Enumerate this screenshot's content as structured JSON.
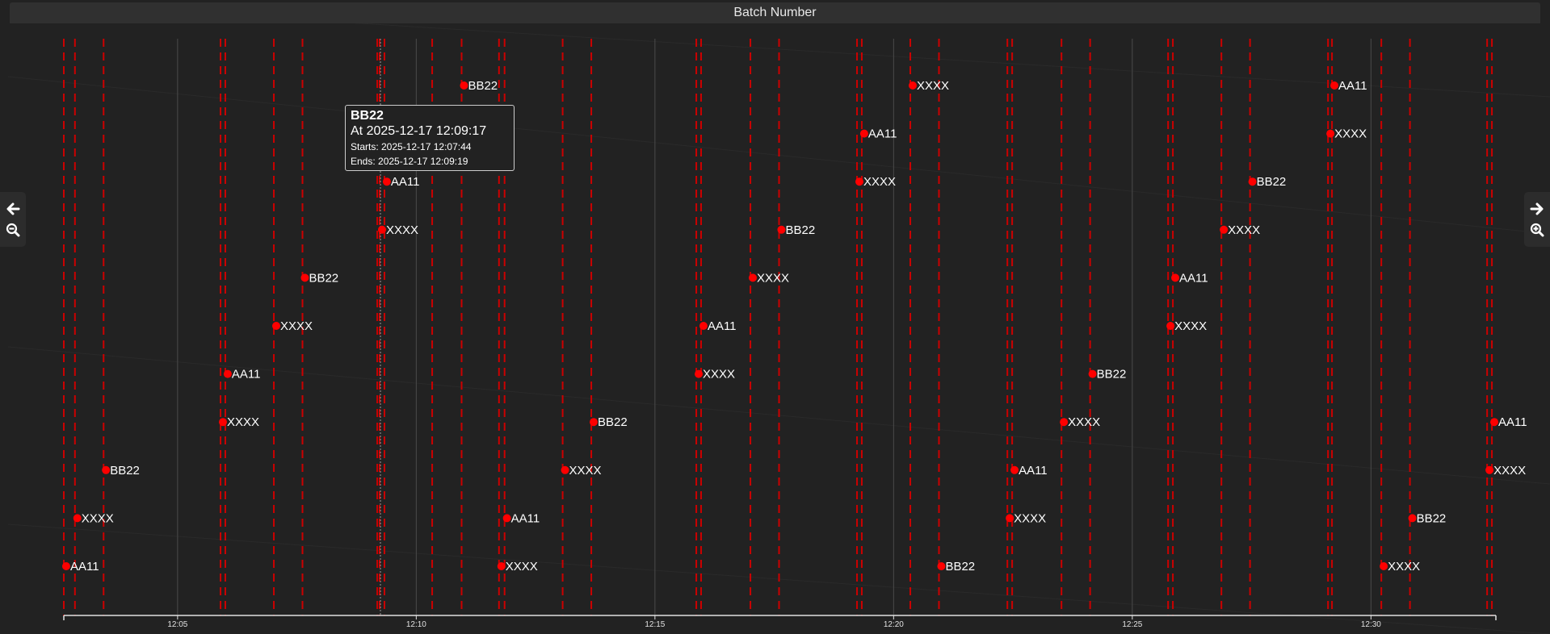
{
  "title": "Batch Number",
  "nav": {
    "prev_icon": "arrow-left-icon",
    "zoom_out_icon": "zoom-out-icon",
    "next_icon": "arrow-right-icon",
    "zoom_in_icon": "zoom-in-icon"
  },
  "tooltip": {
    "title": "BB22",
    "at": "At 2025-12-17 12:09:17",
    "starts": "Starts: 2025-12-17 12:07:44",
    "ends": "Ends: 2025-12-17 12:09:19"
  },
  "chart_data": {
    "type": "scatter",
    "title": "Batch Number",
    "xlabel": "",
    "ylabel": "",
    "x_range": [
      "12:02:37",
      "12:32:37"
    ],
    "x_ticks": [
      "12:05",
      "12:10",
      "12:15",
      "12:20",
      "12:25",
      "12:30"
    ],
    "grid": true,
    "point_color": "#ff0000",
    "line_color": "#cc0000",
    "background_color": "#222222",
    "points": [
      {
        "label": "AA11",
        "time": "12:02:40",
        "row": 1
      },
      {
        "label": "XXXX",
        "time": "12:02:54",
        "row": 2
      },
      {
        "label": "BB22",
        "time": "12:03:30",
        "row": 3
      },
      {
        "label": "XXXX",
        "time": "12:05:57",
        "row": 4
      },
      {
        "label": "AA11",
        "time": "12:06:03",
        "row": 5
      },
      {
        "label": "XXXX",
        "time": "12:07:04",
        "row": 6
      },
      {
        "label": "BB22",
        "time": "12:07:40",
        "row": 7
      },
      {
        "label": "XXXX",
        "time": "12:09:17",
        "row": 8
      },
      {
        "label": "AA11",
        "time": "12:09:23",
        "row": 9
      },
      {
        "label": "BB22",
        "time": "12:11:00",
        "row": 11
      },
      {
        "label": "XXXX",
        "time": "12:11:47",
        "row": 1
      },
      {
        "label": "AA11",
        "time": "12:11:54",
        "row": 2
      },
      {
        "label": "XXXX",
        "time": "12:13:07",
        "row": 3
      },
      {
        "label": "BB22",
        "time": "12:13:43",
        "row": 4
      },
      {
        "label": "XXXX",
        "time": "12:15:55",
        "row": 5
      },
      {
        "label": "AA11",
        "time": "12:16:01",
        "row": 6
      },
      {
        "label": "XXXX",
        "time": "12:17:03",
        "row": 7
      },
      {
        "label": "BB22",
        "time": "12:17:39",
        "row": 8
      },
      {
        "label": "XXXX",
        "time": "12:19:17",
        "row": 9
      },
      {
        "label": "AA11",
        "time": "12:19:23",
        "row": 10
      },
      {
        "label": "XXXX",
        "time": "12:20:24",
        "row": 11
      },
      {
        "label": "BB22",
        "time": "12:21:00",
        "row": 1
      },
      {
        "label": "XXXX",
        "time": "12:22:26",
        "row": 2
      },
      {
        "label": "AA11",
        "time": "12:22:32",
        "row": 3
      },
      {
        "label": "XXXX",
        "time": "12:23:34",
        "row": 4
      },
      {
        "label": "BB22",
        "time": "12:24:10",
        "row": 5
      },
      {
        "label": "XXXX",
        "time": "12:25:48",
        "row": 6
      },
      {
        "label": "AA11",
        "time": "12:25:54",
        "row": 7
      },
      {
        "label": "XXXX",
        "time": "12:26:55",
        "row": 8
      },
      {
        "label": "BB22",
        "time": "12:27:31",
        "row": 9
      },
      {
        "label": "XXXX",
        "time": "12:29:09",
        "row": 10
      },
      {
        "label": "AA11",
        "time": "12:29:14",
        "row": 11
      },
      {
        "label": "XXXX",
        "time": "12:30:16",
        "row": 1
      },
      {
        "label": "BB22",
        "time": "12:30:52",
        "row": 2
      },
      {
        "label": "XXXX",
        "time": "12:32:29",
        "row": 3
      },
      {
        "label": "AA11",
        "time": "12:32:35",
        "row": 4
      }
    ],
    "event_times": [
      "12:02:37",
      "12:02:51",
      "12:03:27",
      "12:05:54",
      "12:06:00",
      "12:07:01",
      "12:07:37",
      "12:09:11",
      "12:09:14",
      "12:09:20",
      "12:10:20",
      "12:10:57",
      "12:11:44",
      "12:11:51",
      "12:13:04",
      "12:13:40",
      "12:15:52",
      "12:15:58",
      "12:17:00",
      "12:17:36",
      "12:19:14",
      "12:19:20",
      "12:20:21",
      "12:20:57",
      "12:22:23",
      "12:22:29",
      "12:23:31",
      "12:24:07",
      "12:25:45",
      "12:25:51",
      "12:26:52",
      "12:27:28",
      "12:29:06",
      "12:29:11",
      "12:30:13",
      "12:30:49",
      "12:32:26",
      "12:32:32"
    ],
    "hover_time": "12:09:17"
  }
}
